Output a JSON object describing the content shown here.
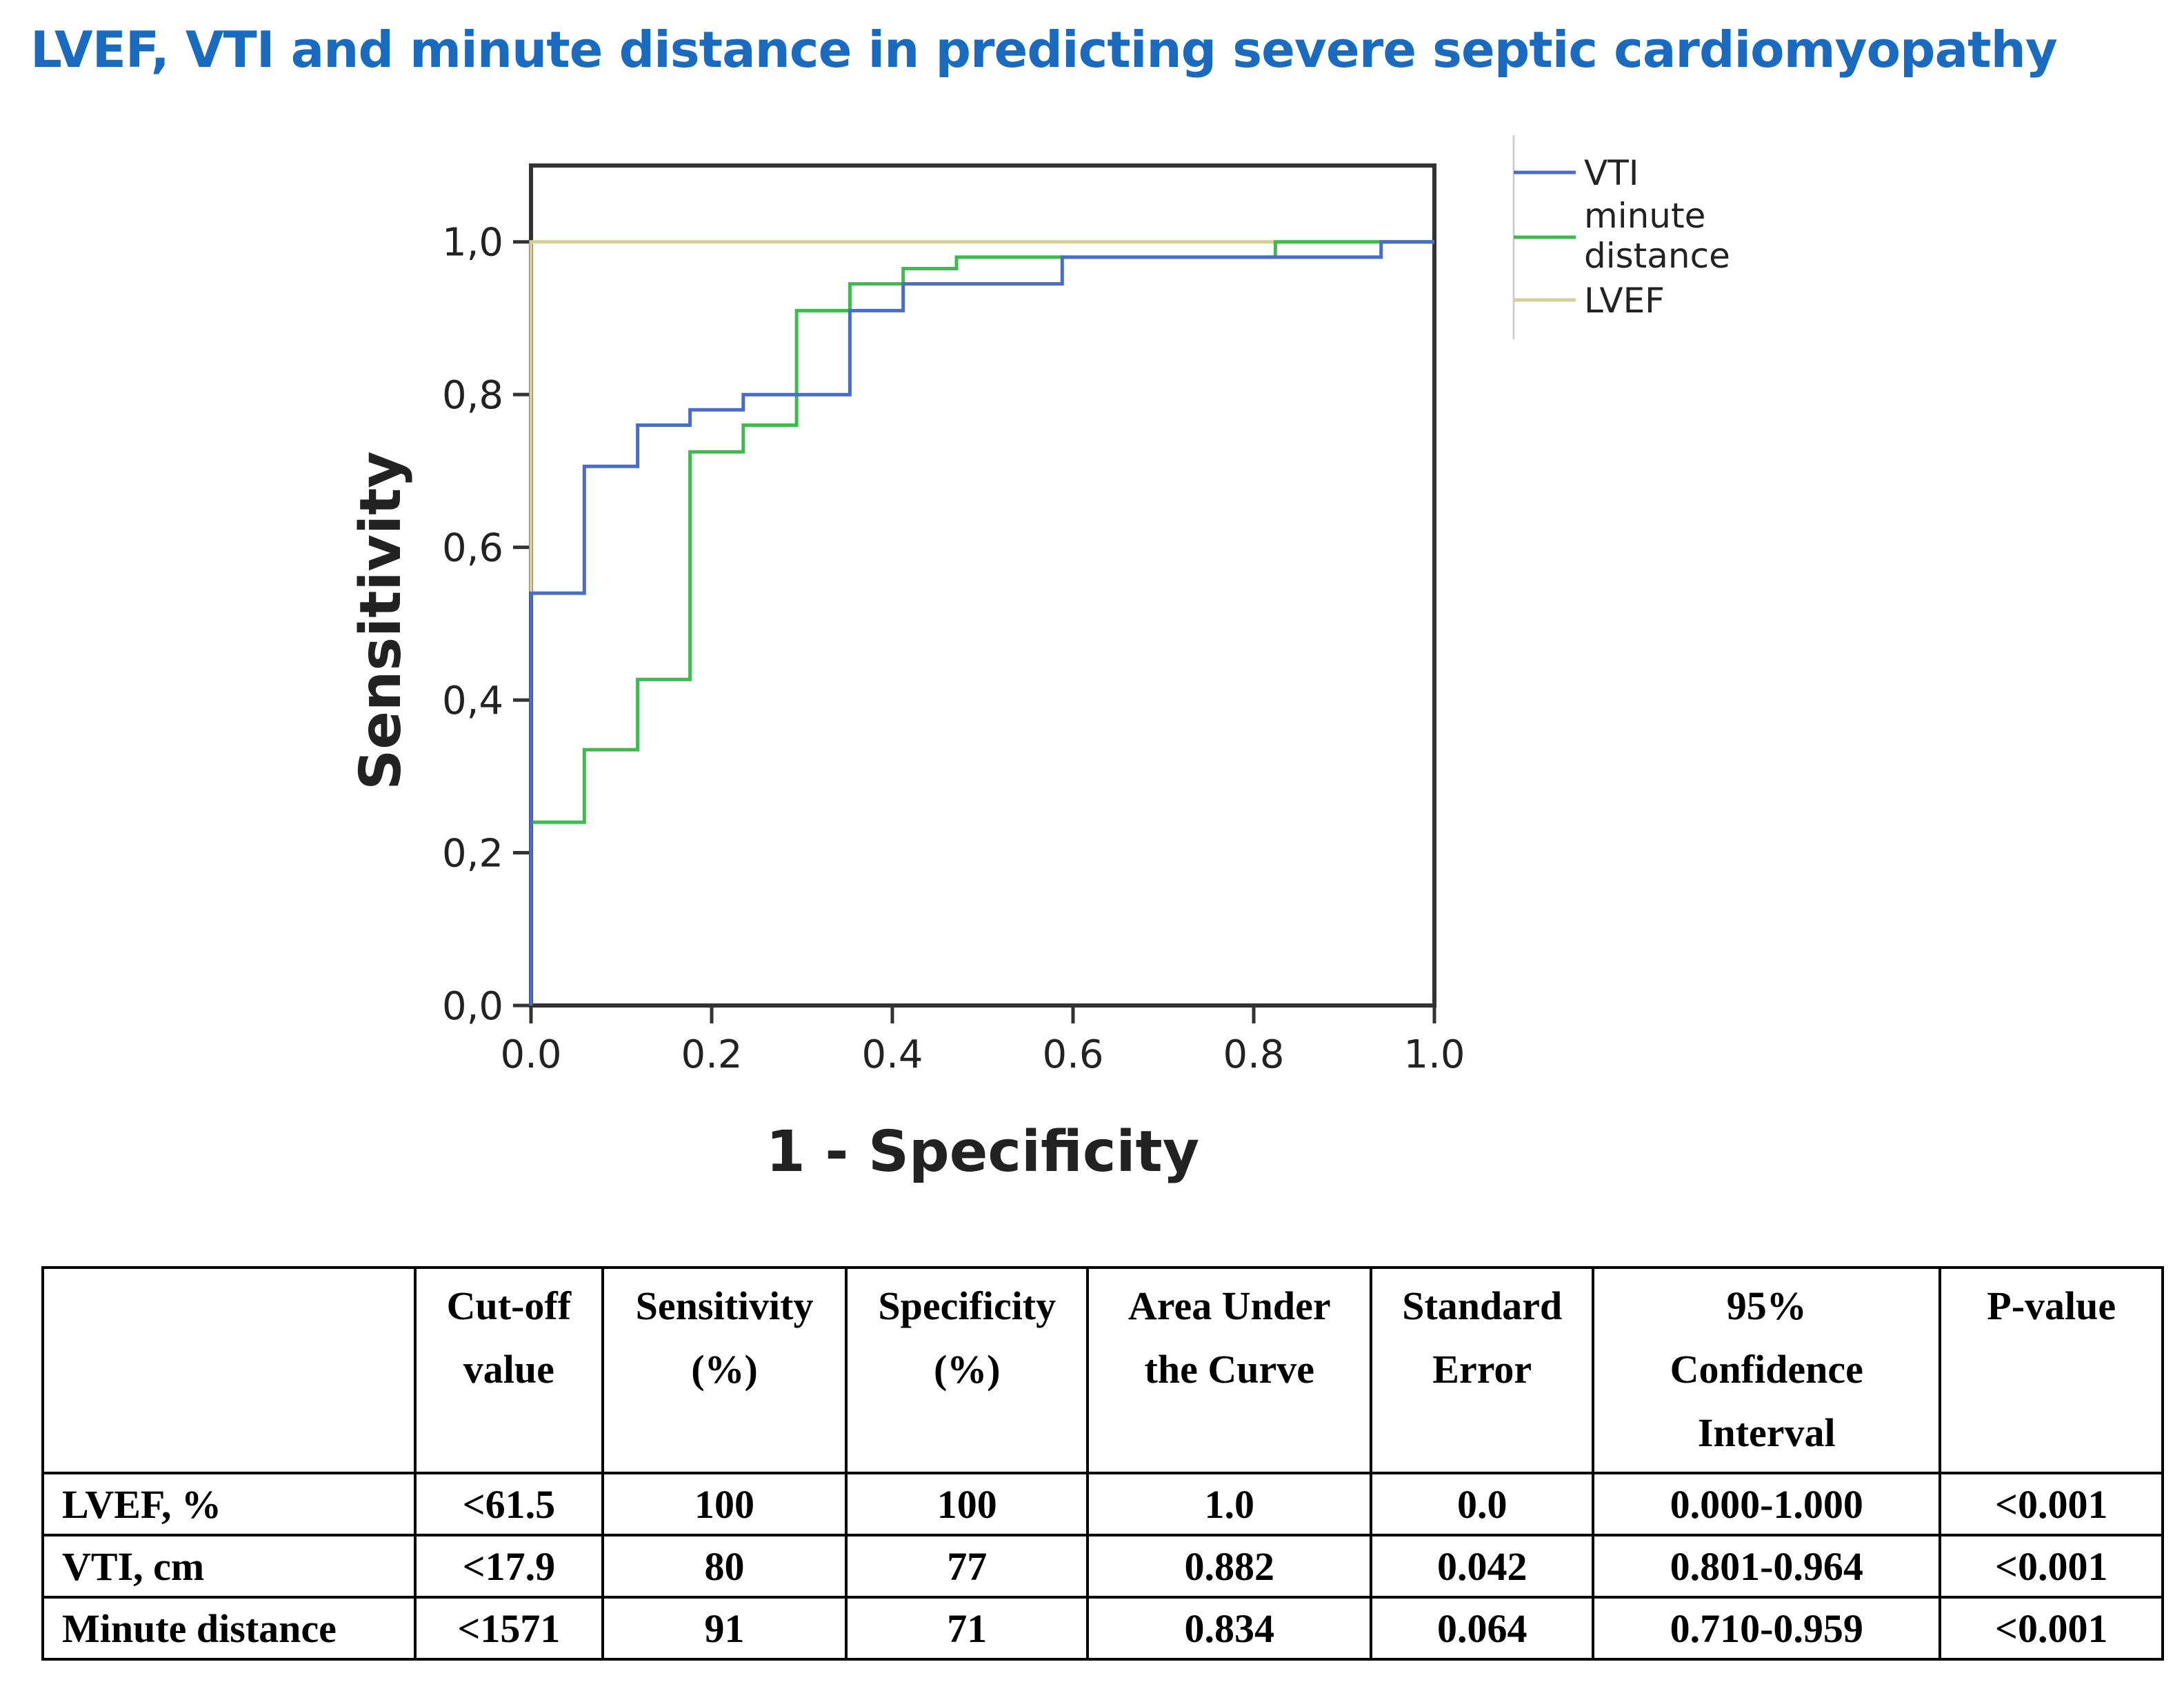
{
  "title": "LVEF,  VTI and minute distance in predicting severe septic cardiomyopathy",
  "chart_data": {
    "type": "line",
    "title": "LVEF,  VTI and minute distance in predicting severe septic cardiomyopathy",
    "xlabel": "1 - Specificity",
    "ylabel": "Sensitivity",
    "xlim": [
      0,
      1
    ],
    "ylim": [
      0,
      1.1
    ],
    "x_ticks": [
      "0.0",
      "0.2",
      "0.4",
      "0.6",
      "0.8",
      "1.0"
    ],
    "y_ticks": [
      "0,0",
      "0,2",
      "0,4",
      "0,6",
      "0,8",
      "1,0"
    ],
    "legend_position": "right",
    "series": [
      {
        "name": "VTI",
        "color": "#4a6cc4",
        "points": [
          [
            0,
            0
          ],
          [
            0,
            0.54
          ],
          [
            0.059,
            0.54
          ],
          [
            0.059,
            0.706
          ],
          [
            0.118,
            0.706
          ],
          [
            0.118,
            0.76
          ],
          [
            0.176,
            0.76
          ],
          [
            0.176,
            0.78
          ],
          [
            0.235,
            0.78
          ],
          [
            0.235,
            0.8
          ],
          [
            0.353,
            0.8
          ],
          [
            0.353,
            0.91
          ],
          [
            0.412,
            0.91
          ],
          [
            0.412,
            0.945
          ],
          [
            0.588,
            0.945
          ],
          [
            0.588,
            0.98
          ],
          [
            0.941,
            0.98
          ],
          [
            0.941,
            1.0
          ],
          [
            1.0,
            1.0
          ]
        ]
      },
      {
        "name": "minute distance",
        "color": "#3fba4e",
        "points": [
          [
            0,
            0
          ],
          [
            0,
            0.24
          ],
          [
            0.059,
            0.24
          ],
          [
            0.059,
            0.335
          ],
          [
            0.118,
            0.335
          ],
          [
            0.118,
            0.427
          ],
          [
            0.176,
            0.427
          ],
          [
            0.176,
            0.725
          ],
          [
            0.235,
            0.725
          ],
          [
            0.235,
            0.76
          ],
          [
            0.294,
            0.76
          ],
          [
            0.294,
            0.91
          ],
          [
            0.353,
            0.91
          ],
          [
            0.353,
            0.945
          ],
          [
            0.412,
            0.945
          ],
          [
            0.412,
            0.965
          ],
          [
            0.471,
            0.965
          ],
          [
            0.471,
            0.98
          ],
          [
            0.824,
            0.98
          ],
          [
            0.824,
            1.0
          ],
          [
            1.0,
            1.0
          ]
        ]
      },
      {
        "name": "LVEF",
        "color": "#d8ce9c",
        "points": [
          [
            0,
            0
          ],
          [
            0,
            1.0
          ],
          [
            1.0,
            1.0
          ]
        ]
      }
    ]
  },
  "legend_labels": {
    "vti": "VTI",
    "minute_line1": "minute",
    "minute_line2": "distance",
    "lvef": "LVEF"
  },
  "table": {
    "headers": {
      "cutoff": [
        "Cut-off",
        "value"
      ],
      "sensitivity": [
        "Sensitivity",
        "(%)"
      ],
      "specificity": [
        "Specificity",
        "(%)"
      ],
      "auc": [
        "Area Under",
        "the Curve"
      ],
      "se": [
        "Standard",
        "Error"
      ],
      "ci": [
        "95%",
        "Confidence",
        "Interval"
      ],
      "p": [
        "P-value"
      ]
    },
    "rows": [
      {
        "label": "LVEF, %",
        "cutoff": "<61.5",
        "sensitivity": "100",
        "specificity": "100",
        "auc": "1.0",
        "se": "0.0",
        "ci": "0.000-1.000",
        "p": "<0.001"
      },
      {
        "label": "VTI, cm",
        "cutoff": "<17.9",
        "sensitivity": "80",
        "specificity": "77",
        "auc": "0.882",
        "se": "0.042",
        "ci": "0.801-0.964",
        "p": "<0.001"
      },
      {
        "label": "Minute distance",
        "cutoff": "<1571",
        "sensitivity": "91",
        "specificity": "71",
        "auc": "0.834",
        "se": "0.064",
        "ci": "0.710-0.959",
        "p": "<0.001"
      }
    ]
  }
}
